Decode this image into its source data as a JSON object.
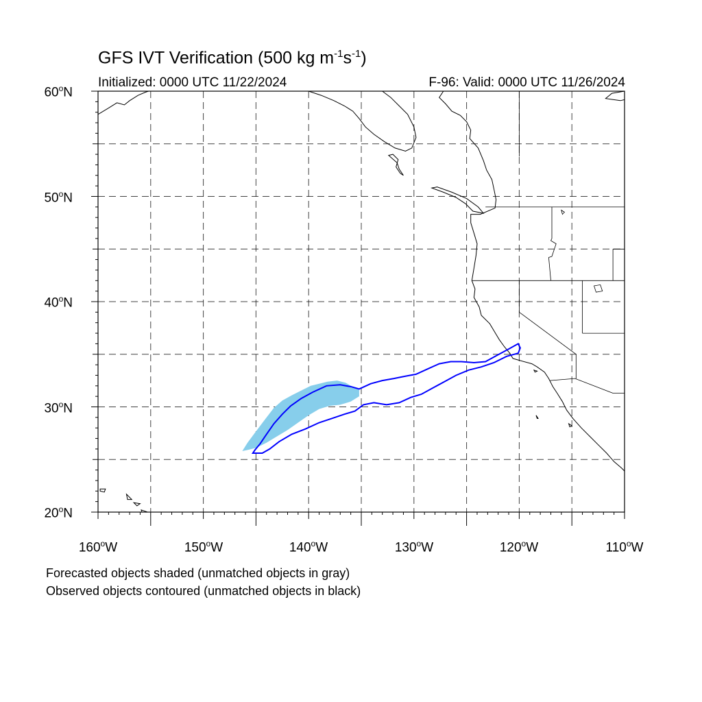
{
  "title": {
    "prefix": "GFS IVT Verification (500 kg m",
    "exp1": "-1",
    "mid": "s",
    "exp2": "-1",
    "suffix": ")"
  },
  "initialized": "Initialized: 0000 UTC 11/22/2024",
  "valid": "F-96: Valid: 0000 UTC 11/26/2024",
  "lat_labels": [
    {
      "value": "60",
      "suffix": "N"
    },
    {
      "value": "50",
      "suffix": "N"
    },
    {
      "value": "40",
      "suffix": "N"
    },
    {
      "value": "30",
      "suffix": "N"
    },
    {
      "value": "20",
      "suffix": "N"
    }
  ],
  "lon_labels": [
    {
      "value": "160",
      "suffix": "W"
    },
    {
      "value": "150",
      "suffix": "W"
    },
    {
      "value": "140",
      "suffix": "W"
    },
    {
      "value": "130",
      "suffix": "W"
    },
    {
      "value": "120",
      "suffix": "W"
    },
    {
      "value": "110",
      "suffix": "W"
    }
  ],
  "footnotes": {
    "forecast": "Forecasted objects shaded (unmatched objects in gray)",
    "observed": "Observed objects contoured (unmatched objects in black)"
  },
  "map": {
    "lon_range": [
      -160,
      -110
    ],
    "lat_range": [
      20,
      60
    ],
    "gridline_lons": [
      -155,
      -150,
      -145,
      -140,
      -135,
      -130,
      -125,
      -120,
      -115
    ],
    "gridline_lats": [
      25,
      30,
      35,
      40,
      45,
      50,
      55
    ],
    "colors": {
      "forecast_fill": "#87CEEB",
      "observed_contour": "#0000FF",
      "coastline": "#000000",
      "grid": "#000000"
    },
    "forecast_object": [
      [
        -146.3,
        25.8
      ],
      [
        -145.8,
        26.6
      ],
      [
        -145.2,
        27.4
      ],
      [
        -144.6,
        28.2
      ],
      [
        -144.0,
        29.0
      ],
      [
        -143.3,
        29.9
      ],
      [
        -142.5,
        30.6
      ],
      [
        -141.6,
        31.1
      ],
      [
        -140.6,
        31.6
      ],
      [
        -139.8,
        32.0
      ],
      [
        -139.0,
        32.2
      ],
      [
        -138.2,
        32.4
      ],
      [
        -137.3,
        32.5
      ],
      [
        -136.5,
        32.3
      ],
      [
        -135.8,
        31.9
      ],
      [
        -135.2,
        31.6
      ],
      [
        -135.2,
        31.0
      ],
      [
        -136.0,
        30.5
      ],
      [
        -137.0,
        30.2
      ],
      [
        -138.0,
        30.1
      ],
      [
        -139.0,
        29.8
      ],
      [
        -140.0,
        29.2
      ],
      [
        -141.0,
        28.5
      ],
      [
        -142.0,
        27.8
      ],
      [
        -143.0,
        27.2
      ],
      [
        -144.0,
        26.6
      ],
      [
        -145.0,
        26.1
      ],
      [
        -145.8,
        25.9
      ]
    ],
    "observed_object": [
      [
        -145.1,
        25.9
      ],
      [
        -144.6,
        26.5
      ],
      [
        -144.0,
        27.4
      ],
      [
        -143.3,
        28.4
      ],
      [
        -142.5,
        29.3
      ],
      [
        -141.7,
        30.1
      ],
      [
        -140.7,
        30.8
      ],
      [
        -139.6,
        31.4
      ],
      [
        -138.3,
        32.0
      ],
      [
        -137.0,
        32.1
      ],
      [
        -135.9,
        31.9
      ],
      [
        -135.2,
        31.7
      ],
      [
        -134.1,
        32.2
      ],
      [
        -133.0,
        32.5
      ],
      [
        -131.9,
        32.7
      ],
      [
        -130.9,
        32.9
      ],
      [
        -129.8,
        33.1
      ],
      [
        -128.7,
        33.6
      ],
      [
        -127.6,
        34.1
      ],
      [
        -126.5,
        34.3
      ],
      [
        -125.5,
        34.3
      ],
      [
        -124.3,
        34.2
      ],
      [
        -123.2,
        34.3
      ],
      [
        -122.1,
        34.9
      ],
      [
        -121.0,
        35.5
      ],
      [
        -120.1,
        36.0
      ],
      [
        -119.9,
        35.6
      ],
      [
        -120.1,
        35.1
      ],
      [
        -121.2,
        34.8
      ],
      [
        -122.4,
        34.2
      ],
      [
        -123.6,
        33.8
      ],
      [
        -124.8,
        33.5
      ],
      [
        -126.0,
        33.0
      ],
      [
        -127.1,
        32.4
      ],
      [
        -128.2,
        31.8
      ],
      [
        -129.3,
        31.2
      ],
      [
        -130.3,
        30.9
      ],
      [
        -131.4,
        30.4
      ],
      [
        -132.6,
        30.2
      ],
      [
        -133.8,
        30.4
      ],
      [
        -134.8,
        30.2
      ],
      [
        -135.6,
        29.6
      ],
      [
        -136.6,
        29.3
      ],
      [
        -137.8,
        28.9
      ],
      [
        -139.0,
        28.5
      ],
      [
        -140.3,
        27.9
      ],
      [
        -141.6,
        27.4
      ],
      [
        -142.8,
        26.7
      ],
      [
        -143.7,
        26.0
      ],
      [
        -144.4,
        25.6
      ],
      [
        -145.3,
        25.6
      ]
    ],
    "coastline": [
      [
        -127.2,
        60.0
      ],
      [
        -127.6,
        59.4
      ],
      [
        -127.0,
        58.8
      ],
      [
        -126.4,
        58.1
      ],
      [
        -125.6,
        57.7
      ],
      [
        -125.0,
        57.1
      ],
      [
        -124.6,
        56.3
      ],
      [
        -124.7,
        55.5
      ],
      [
        -123.9,
        54.6
      ],
      [
        -123.4,
        53.4
      ],
      [
        -123.1,
        52.5
      ],
      [
        -122.6,
        51.6
      ],
      [
        -122.4,
        50.7
      ],
      [
        -122.2,
        49.7
      ],
      [
        -122.3,
        48.9
      ],
      [
        -123.7,
        48.3
      ],
      [
        -124.6,
        48.3
      ],
      [
        -124.6,
        47.5
      ],
      [
        -124.3,
        46.5
      ],
      [
        -124.0,
        45.5
      ],
      [
        -124.1,
        44.4
      ],
      [
        -124.3,
        43.2
      ],
      [
        -124.5,
        42.0
      ],
      [
        -124.2,
        41.2
      ],
      [
        -124.3,
        40.4
      ],
      [
        -123.8,
        39.5
      ],
      [
        -123.6,
        38.7
      ],
      [
        -122.8,
        37.9
      ],
      [
        -122.5,
        37.4
      ],
      [
        -122.2,
        36.9
      ],
      [
        -121.9,
        36.4
      ],
      [
        -121.4,
        35.7
      ],
      [
        -120.9,
        35.1
      ],
      [
        -120.6,
        34.6
      ],
      [
        -119.9,
        34.4
      ],
      [
        -118.8,
        34.1
      ],
      [
        -118.3,
        33.8
      ],
      [
        -117.6,
        33.3
      ],
      [
        -117.2,
        32.7
      ],
      [
        -116.8,
        31.9
      ],
      [
        -116.4,
        31.3
      ],
      [
        -115.9,
        30.5
      ],
      [
        -115.5,
        29.7
      ],
      [
        -114.9,
        28.9
      ],
      [
        -114.1,
        28.0
      ],
      [
        -113.3,
        27.2
      ],
      [
        -112.5,
        26.4
      ],
      [
        -111.7,
        25.6
      ],
      [
        -111.0,
        24.8
      ],
      [
        -110.3,
        24.2
      ],
      [
        -110.0,
        23.9
      ]
    ],
    "coastline_alaska": [
      [
        -160.0,
        57.8
      ],
      [
        -159.0,
        58.4
      ],
      [
        -158.2,
        58.9
      ],
      [
        -157.5,
        58.7
      ],
      [
        -157.0,
        59.1
      ],
      [
        -156.2,
        59.6
      ],
      [
        -155.5,
        59.9
      ],
      [
        -155.2,
        60.0
      ]
    ],
    "coastline_se_alaska": [
      [
        -140.0,
        60.0
      ],
      [
        -138.8,
        59.6
      ],
      [
        -137.6,
        59.1
      ],
      [
        -136.6,
        58.6
      ],
      [
        -135.8,
        58.1
      ],
      [
        -135.2,
        57.4
      ],
      [
        -134.6,
        56.6
      ],
      [
        -133.8,
        55.9
      ],
      [
        -132.8,
        55.2
      ],
      [
        -131.8,
        54.6
      ],
      [
        -130.8,
        54.3
      ],
      [
        -130.2,
        54.6
      ],
      [
        -129.8,
        55.6
      ],
      [
        -130.0,
        56.6
      ],
      [
        -130.6,
        57.8
      ],
      [
        -131.4,
        58.6
      ],
      [
        -132.2,
        59.4
      ],
      [
        -133.0,
        60.0
      ]
    ],
    "coastline_upper_right": [
      [
        -110.0,
        60.0
      ],
      [
        -111.2,
        59.8
      ],
      [
        -111.8,
        59.3
      ],
      [
        -110.4,
        59.1
      ],
      [
        -110.0,
        59.2
      ]
    ],
    "islands": [
      [
        [
          -132.0,
          54.0
        ],
        [
          -131.5,
          53.5
        ],
        [
          -131.7,
          52.8
        ],
        [
          -131.3,
          52.2
        ],
        [
          -131.0,
          52.0
        ],
        [
          -131.4,
          52.6
        ],
        [
          -131.6,
          53.2
        ],
        [
          -132.4,
          53.9
        ],
        [
          -132.0,
          54.0
        ]
      ],
      [
        [
          -128.3,
          50.8
        ],
        [
          -127.2,
          50.4
        ],
        [
          -126.0,
          49.9
        ],
        [
          -125.1,
          49.3
        ],
        [
          -124.4,
          48.6
        ],
        [
          -123.4,
          48.4
        ],
        [
          -123.9,
          49.0
        ],
        [
          -125.0,
          49.8
        ],
        [
          -126.4,
          50.4
        ],
        [
          -127.8,
          50.9
        ],
        [
          -128.3,
          50.8
        ]
      ],
      [
        [
          -159.8,
          22.2
        ],
        [
          -159.3,
          22.2
        ],
        [
          -159.4,
          21.9
        ],
        [
          -159.8,
          22.0
        ],
        [
          -159.8,
          22.2
        ]
      ],
      [
        [
          -157.3,
          21.7
        ],
        [
          -156.8,
          21.2
        ],
        [
          -157.2,
          21.2
        ],
        [
          -157.3,
          21.7
        ]
      ],
      [
        [
          -156.6,
          20.9
        ],
        [
          -156.0,
          20.8
        ],
        [
          -156.3,
          20.6
        ],
        [
          -156.6,
          20.9
        ]
      ],
      [
        [
          -155.9,
          20.2
        ],
        [
          -155.0,
          19.9
        ],
        [
          -155.6,
          19.4
        ],
        [
          -155.9,
          20.2
        ]
      ],
      [
        [
          -118.6,
          33.5
        ],
        [
          -118.3,
          33.4
        ],
        [
          -118.5,
          33.3
        ],
        [
          -118.6,
          33.5
        ]
      ],
      [
        [
          -118.4,
          29.2
        ],
        [
          -118.2,
          28.9
        ],
        [
          -118.3,
          28.9
        ],
        [
          -118.4,
          29.2
        ]
      ],
      [
        [
          -115.3,
          28.4
        ],
        [
          -115.0,
          28.2
        ],
        [
          -115.2,
          28.1
        ],
        [
          -115.3,
          28.4
        ]
      ]
    ],
    "borders": [
      [
        [
          -123.2,
          49.0
        ],
        [
          -110.0,
          49.0
        ]
      ],
      [
        [
          -124.5,
          42.0
        ],
        [
          -110.0,
          42.0
        ]
      ],
      [
        [
          -120.0,
          42.0
        ],
        [
          -120.0,
          39.0
        ],
        [
          -114.6,
          35.0
        ]
      ],
      [
        [
          -117.1,
          32.5
        ],
        [
          -114.7,
          32.7
        ],
        [
          -111.1,
          31.3
        ],
        [
          -110.0,
          31.3
        ]
      ],
      [
        [
          -116.9,
          49.0
        ],
        [
          -116.9,
          46.0
        ],
        [
          -117.0,
          45.8
        ],
        [
          -116.5,
          45.5
        ],
        [
          -116.9,
          44.3
        ],
        [
          -117.2,
          44.2
        ],
        [
          -117.0,
          42.0
        ]
      ],
      [
        [
          -114.0,
          42.0
        ],
        [
          -114.0,
          37.0
        ]
      ],
      [
        [
          -114.0,
          37.0
        ],
        [
          -110.0,
          37.0
        ]
      ],
      [
        [
          -111.1,
          45.0
        ],
        [
          -110.0,
          45.0
        ]
      ],
      [
        [
          -111.1,
          45.0
        ],
        [
          -111.1,
          42.0
        ]
      ],
      [
        [
          -120.0,
          60.0
        ],
        [
          -120.0,
          54.0
        ],
        [
          -120.0,
          53.8
        ]
      ],
      [
        [
          -114.6,
          35.0
        ],
        [
          -114.6,
          32.7
        ]
      ]
    ],
    "lakes": [
      [
        [
          -112.9,
          41.5
        ],
        [
          -112.3,
          41.6
        ],
        [
          -112.1,
          41.0
        ],
        [
          -112.7,
          40.9
        ],
        [
          -112.9,
          41.5
        ]
      ],
      [
        [
          -116.0,
          48.7
        ],
        [
          -115.7,
          48.5
        ],
        [
          -115.9,
          48.3
        ],
        [
          -116.0,
          48.7
        ]
      ]
    ]
  }
}
